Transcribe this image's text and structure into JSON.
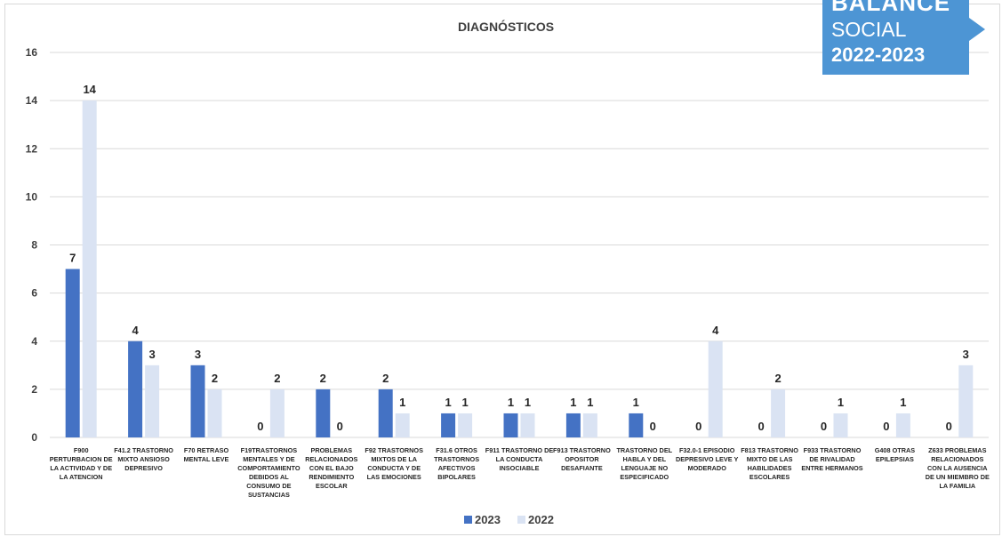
{
  "badge": {
    "line1": "BALANCE",
    "line2": "SOCIAL",
    "line3": "2022-2023",
    "color": "#4d95d4"
  },
  "chart_data": {
    "type": "bar",
    "title": "DIAGNÓSTICOS",
    "xlabel": "",
    "ylabel": "",
    "ylim": [
      0,
      16
    ],
    "yticks": [
      0,
      2,
      4,
      6,
      8,
      10,
      12,
      14,
      16
    ],
    "grid": true,
    "legend_position": "bottom",
    "categories": [
      "F900 PERTURBACION DE LA ACTIVIDAD Y DE LA ATENCION",
      "F41.2 TRASTORNO MIXTO ANSIOSO DEPRESIVO",
      "F70 RETRASO MENTAL LEVE",
      "F19TRASTORNOS MENTALES Y DE COMPORTAMIENTO DEBIDOS AL CONSUMO DE SUSTANCIAS",
      "PROBLEMAS RELACIONADOS CON EL BAJO RENDIMIENTO ESCOLAR",
      "F92 TRASTORNOS MIXTOS DE LA CONDUCTA Y DE LAS EMOCIONES",
      "F31.6 OTROS TRASTORNOS AFECTIVOS BIPOLARES",
      "F911 TRASTORNO DE LA CONDUCTA INSOCIABLE",
      "F913 TRASTORNO OPOSITOR DESAFIANTE",
      "TRASTORNO DEL HABLA Y DEL LENGUAJE NO ESPECIFICADO",
      "F32.0-1 EPISODIO DEPRESIVO LEVE Y MODERADO",
      "F813 TRASTORNO MIXTO DE LAS HABILIDADES ESCOLARES",
      "F933 TRASTORNO DE RIVALIDAD ENTRE HERMANOS",
      "G408 OTRAS EPILEPSIAS",
      "Z633 PROBLEMAS RELACIONADOS CON LA AUSENCIA DE UN MIEMBRO DE LA FAMILIA"
    ],
    "category_lines": [
      [
        "F900",
        "PERTURBACION DE",
        "LA ACTIVIDAD Y DE",
        "LA ATENCION"
      ],
      [
        "F41.2 TRASTORNO",
        "MIXTO ANSIOSO",
        "DEPRESIVO"
      ],
      [
        "F70 RETRASO",
        "MENTAL LEVE"
      ],
      [
        "F19TRASTORNOS",
        "MENTALES Y DE",
        "COMPORTAMIENTO",
        "DEBIDOS AL",
        "CONSUMO DE",
        "SUSTANCIAS"
      ],
      [
        "PROBLEMAS",
        "RELACIONADOS",
        "CON EL BAJO",
        "RENDIMIENTO",
        "ESCOLAR"
      ],
      [
        "F92 TRASTORNOS",
        "MIXTOS DE LA",
        "CONDUCTA Y DE",
        "LAS EMOCIONES"
      ],
      [
        "F31.6 OTROS",
        "TRASTORNOS",
        "AFECTIVOS",
        "BIPOLARES"
      ],
      [
        "F911 TRASTORNO DE",
        "LA CONDUCTA",
        "INSOCIABLE"
      ],
      [
        "F913 TRASTORNO",
        "OPOSITOR",
        "DESAFIANTE"
      ],
      [
        "TRASTORNO DEL",
        "HABLA Y DEL",
        "LENGUAJE NO",
        "ESPECIFICADO"
      ],
      [
        "F32.0-1 EPISODIO",
        "DEPRESIVO LEVE Y",
        "MODERADO"
      ],
      [
        "F813 TRASTORNO",
        "MIXTO DE LAS",
        "HABILIDADES",
        "ESCOLARES"
      ],
      [
        "F933 TRASTORNO",
        "DE RIVALIDAD",
        "ENTRE HERMANOS"
      ],
      [
        "G408 OTRAS",
        "EPILEPSIAS"
      ],
      [
        "Z633 PROBLEMAS",
        "RELACIONADOS",
        "CON LA AUSENCIA",
        "DE UN MIEMBRO DE",
        "LA FAMILIA"
      ]
    ],
    "series": [
      {
        "name": "2023",
        "color": "#4472c4",
        "values": [
          7,
          4,
          3,
          0,
          2,
          2,
          1,
          1,
          1,
          1,
          0,
          0,
          0,
          0,
          0
        ]
      },
      {
        "name": "2022",
        "color": "#dae3f3",
        "values": [
          14,
          3,
          2,
          2,
          0,
          1,
          1,
          1,
          1,
          0,
          4,
          2,
          1,
          1,
          3
        ]
      }
    ]
  }
}
